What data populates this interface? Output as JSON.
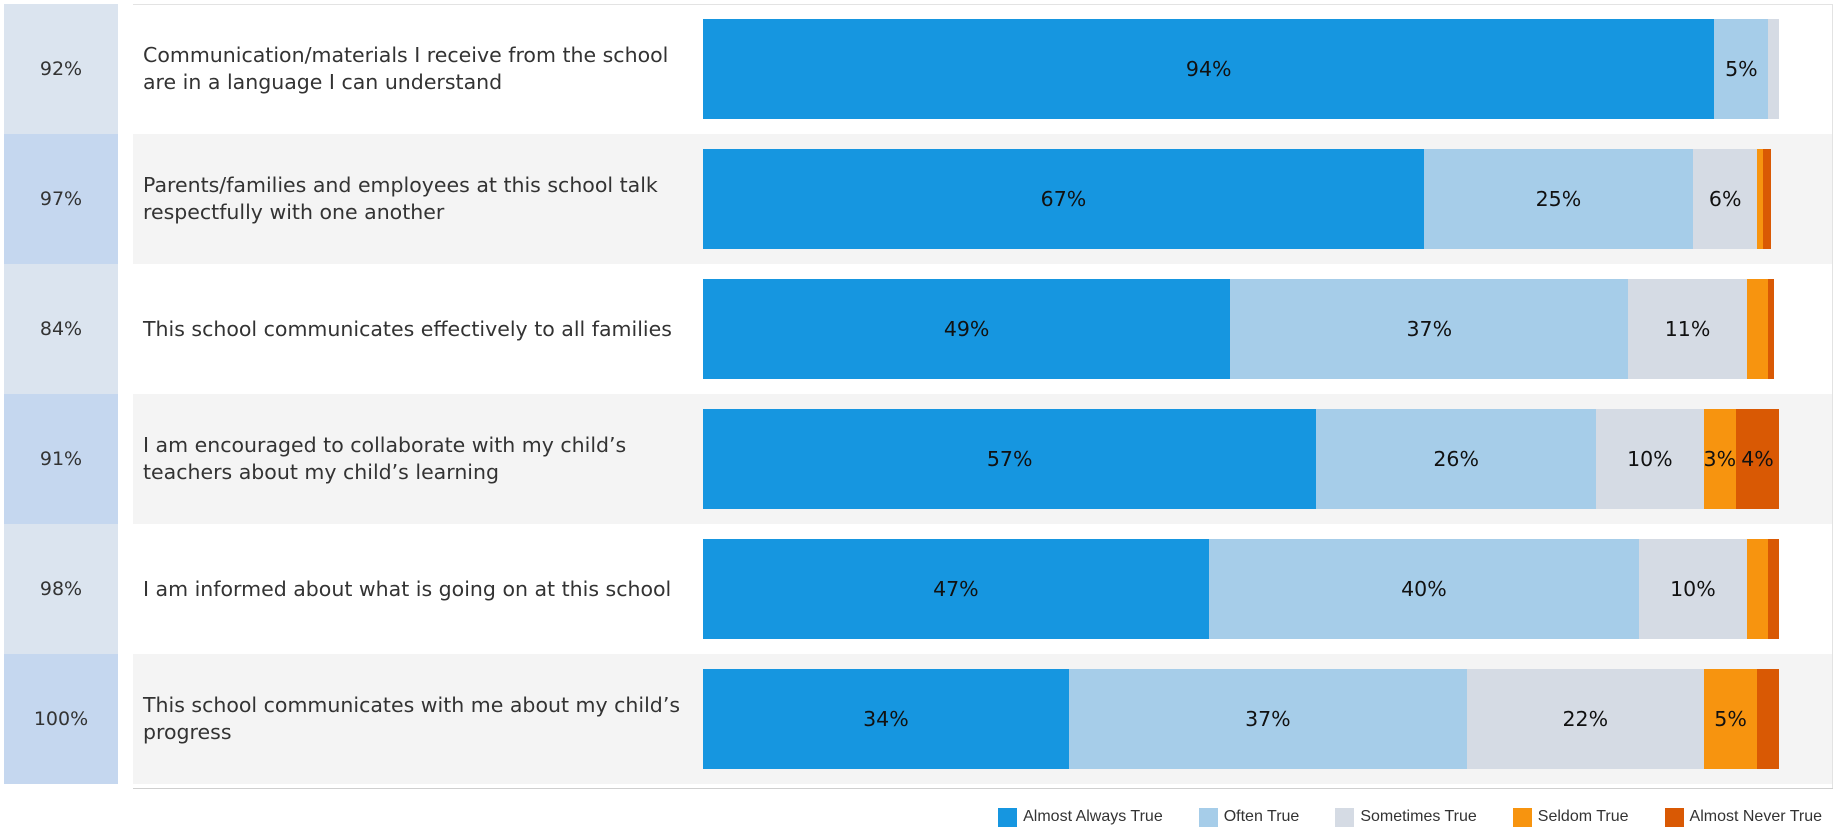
{
  "chart_data": {
    "type": "bar",
    "orientation": "horizontal",
    "stacked": true,
    "categories": [
      "Communication/materials I receive from the school are in a language I can understand",
      "Parents/families and employees at this school talk respectfully with one another",
      "This school communicates effectively to all families",
      "I am encouraged to collaborate with my child’s teachers about my child’s learning",
      "I am informed about what is going on at this school",
      "This school communicates with me about my child’s progress"
    ],
    "scores": [
      "92%",
      "97%",
      "84%",
      "91%",
      "98%",
      "100%"
    ],
    "series": [
      {
        "name": "Almost Always True",
        "color": "#1696e0",
        "values": [
          94,
          67,
          49,
          57,
          47,
          34
        ],
        "labels": [
          "94%",
          "67%",
          "49%",
          "57%",
          "47%",
          "34%"
        ]
      },
      {
        "name": "Often True",
        "color": "#a6cde9",
        "values": [
          5,
          25,
          37,
          26,
          40,
          37
        ],
        "labels": [
          "5%",
          "25%",
          "37%",
          "26%",
          "40%",
          "37%"
        ]
      },
      {
        "name": "Sometimes True",
        "color": "#d5dbe4",
        "values": [
          1,
          6,
          11,
          10,
          10,
          22
        ],
        "labels": [
          "",
          "6%",
          "11%",
          "10%",
          "10%",
          "22%"
        ]
      },
      {
        "name": "Seldom True",
        "color": "#f7940f",
        "values": [
          0,
          0.5,
          2,
          3,
          2,
          5
        ],
        "labels": [
          "",
          "",
          "",
          "3%",
          "",
          "5%"
        ]
      },
      {
        "name": "Almost Never True",
        "color": "#d95904",
        "values": [
          0,
          0.8,
          0.5,
          4,
          1,
          2
        ],
        "labels": [
          "",
          "",
          "",
          "4%",
          "",
          ""
        ]
      }
    ],
    "xlim": [
      0,
      100
    ],
    "legend_position": "bottom-right",
    "grid": false
  },
  "colors": {
    "score_band_light": "#dbe4ef",
    "score_band_dark": "#c5d7ef",
    "row_alt": "#f4f4f4"
  }
}
